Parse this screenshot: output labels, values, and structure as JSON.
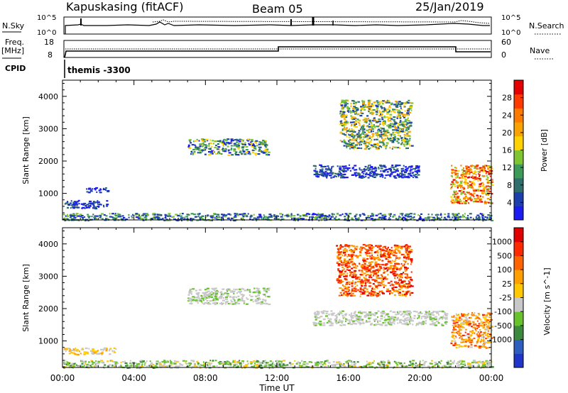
{
  "header": {
    "station": "Kapuskasing (fitACF)",
    "beam": "Beam 05",
    "date": "25/Jan/2019"
  },
  "top_panels": {
    "nsky_label": "N.Sky",
    "nsearch_label": "N.Search",
    "nsky_ticks": [
      "10^5",
      "10^0"
    ],
    "nsearch_ticks": [
      "10^5",
      "10^0"
    ],
    "freq_label": "Freq.",
    "freq_unit": "[MHz]",
    "freq_ticks": [
      "18",
      "8"
    ],
    "nave_label": "Nave",
    "nave_ticks": [
      "60",
      "0"
    ],
    "cpid_label": "CPID",
    "cpid_value": "themis -3300"
  },
  "chart_data": [
    {
      "type": "heatmap",
      "title": "",
      "xlabel": "",
      "ylabel": "Slant Range [km]",
      "xlim": [
        0,
        24
      ],
      "ylim": [
        180,
        4500
      ],
      "x_ticks": [
        "00:00",
        "04:00",
        "08:00",
        "12:00",
        "16:00",
        "20:00",
        "00:00"
      ],
      "y_ticks": [
        1000,
        2000,
        3000,
        4000
      ],
      "colorbar": {
        "label": "Power [dB]",
        "ticks": [
          "4",
          "8",
          "12",
          "16",
          "20",
          "24",
          "28"
        ],
        "colors": [
          "#1c1cf0",
          "#1d3fae",
          "#2f6e6a",
          "#3d9b59",
          "#7fc531",
          "#ffd200",
          "#f9a300",
          "#ff7b00",
          "#ff3a00",
          "#e20000"
        ]
      },
      "regions": [
        {
          "t": [
            0.0,
            2.5
          ],
          "r": [
            550,
            800
          ],
          "value": "4-8 dB"
        },
        {
          "t": [
            1.3,
            2.5
          ],
          "r": [
            1050,
            1200
          ],
          "value": "4-8 dB"
        },
        {
          "t": [
            7.0,
            11.5
          ],
          "r": [
            2200,
            2700
          ],
          "value": "4-20 dB"
        },
        {
          "t": [
            14.0,
            20.0
          ],
          "r": [
            1500,
            1900
          ],
          "value": "4-8 dB"
        },
        {
          "t": [
            15.5,
            19.5
          ],
          "r": [
            2400,
            3900
          ],
          "value": "8-24 dB"
        },
        {
          "t": [
            21.7,
            24.0
          ],
          "r": [
            700,
            1900
          ],
          "value": "20-32 dB"
        },
        {
          "t": [
            0.0,
            24.0
          ],
          "r": [
            180,
            400
          ],
          "value": "4-16 dB"
        }
      ]
    },
    {
      "type": "heatmap",
      "title": "",
      "xlabel": "Time UT",
      "ylabel": "Slant Range [km]",
      "xlim": [
        0,
        24
      ],
      "ylim": [
        180,
        4500
      ],
      "x_ticks": [
        "00:00",
        "04:00",
        "08:00",
        "12:00",
        "16:00",
        "20:00",
        "00:00"
      ],
      "y_ticks": [
        1000,
        2000,
        3000,
        4000
      ],
      "colorbar": {
        "label": "Velocity [m s^-1]",
        "ticks": [
          "1000",
          "500",
          "100",
          "25",
          "-25",
          "-100",
          "-500",
          "-1000"
        ],
        "colors": [
          "#1f36c8",
          "#2f5fbe",
          "#3b8a3e",
          "#67c22b",
          "#c8c8c8",
          "#ffc800",
          "#ffa000",
          "#ff6400",
          "#ff2a00",
          "#e00000"
        ]
      },
      "regions": [
        {
          "t": [
            0.0,
            3.2
          ],
          "r": [
            600,
            800
          ],
          "value": "-25 to -100 m/s"
        },
        {
          "t": [
            7.0,
            11.5
          ],
          "r": [
            2150,
            2650
          ],
          "value": "-25 to 25 m/s"
        },
        {
          "t": [
            14.0,
            21.5
          ],
          "r": [
            1500,
            1950
          ],
          "value": "-25 to 25 m/s"
        },
        {
          "t": [
            15.3,
            19.5
          ],
          "r": [
            2400,
            4000
          ],
          "value": "-100 to -1000 m/s"
        },
        {
          "t": [
            21.7,
            24.0
          ],
          "r": [
            800,
            1900
          ],
          "value": "-100 to -500 m/s"
        },
        {
          "t": [
            0.0,
            24.0
          ],
          "r": [
            180,
            420
          ],
          "value": "-100 to 100 m/s"
        }
      ]
    }
  ]
}
